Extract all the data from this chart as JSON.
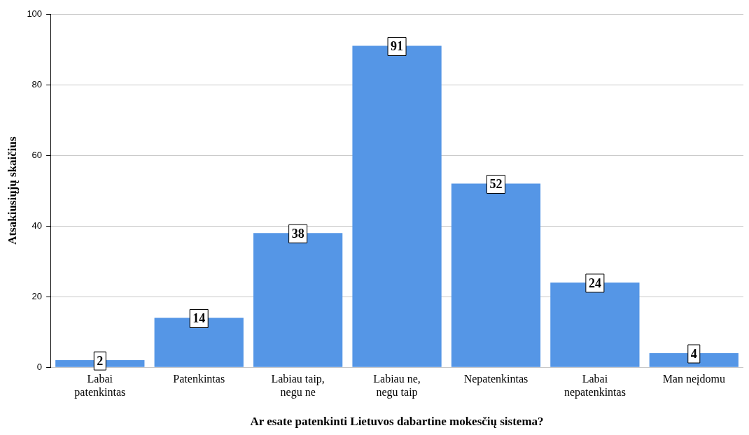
{
  "chart_data": {
    "type": "bar",
    "xlabel": "Ar esate patenkinti Lietuvos dabartine mokesčių sistema?",
    "ylabel": "Atsakiusiųjų skaičius",
    "categories": [
      "Labai patenkintas",
      "Patenkintas",
      "Labiau taip, negu ne",
      "Labiau ne, negu taip",
      "Nepatenkintas",
      "Labai nepatenkintas",
      "Man neįdomu"
    ],
    "values": [
      2,
      14,
      38,
      91,
      52,
      24,
      4
    ],
    "color": "#5596e6",
    "ylim": [
      0,
      100
    ],
    "yticks": [
      0,
      20,
      40,
      60,
      80,
      100
    ],
    "grid": "y",
    "data_labels": true,
    "legend": false
  }
}
